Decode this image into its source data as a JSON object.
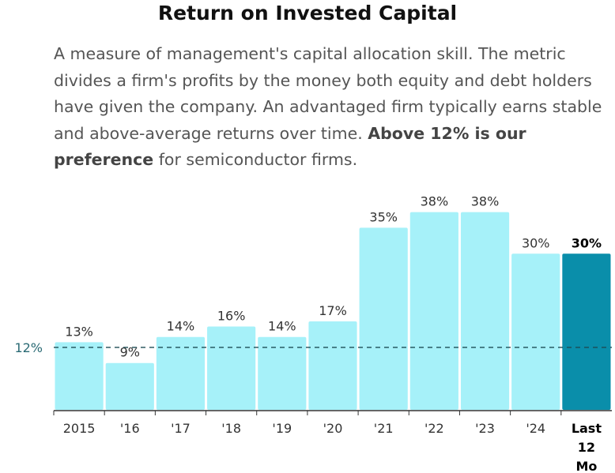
{
  "header": {
    "title": "Return on Invested Capital",
    "description_lead": "A measure of management's capital allocation skill. The metric divides a firm's profits by the money both equity and debt holders have given the company. An advantaged firm typically earns stable and above-average returns over time.",
    "description_bold": "Above 12% is our preference",
    "description_tail": "for semiconductor firms."
  },
  "chart_data": {
    "type": "bar",
    "title": "Return on Invested Capital",
    "categories": [
      "2015",
      "'16",
      "'17",
      "'18",
      "'19",
      "'20",
      "'21",
      "'22",
      "'23",
      "'24",
      "Last 12 Mo"
    ],
    "values": [
      13,
      9,
      14,
      16,
      14,
      17,
      35,
      38,
      38,
      30,
      30
    ],
    "data_labels": [
      "13%",
      "9%",
      "14%",
      "16%",
      "14%",
      "17%",
      "35%",
      "38%",
      "38%",
      "30%",
      "30%"
    ],
    "highlight_index": 10,
    "ylim": [
      0,
      45
    ],
    "reference_line": {
      "value": 12,
      "label": "12%"
    },
    "grid": false,
    "colors": {
      "bar": "#a6f1f9",
      "highlight": "#0a8eaa",
      "axis": "#333333",
      "reference": "#1d4c54"
    }
  }
}
